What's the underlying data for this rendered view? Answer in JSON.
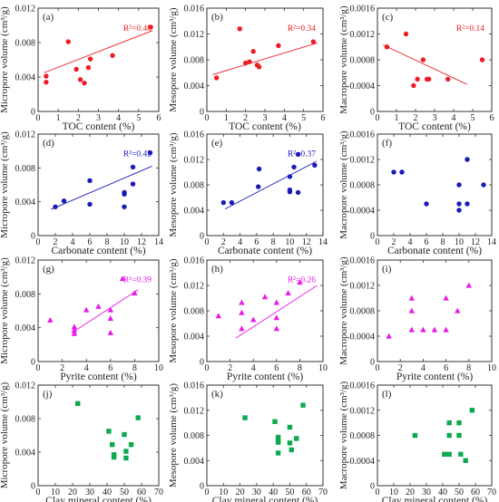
{
  "figure": {
    "background": "#ffffff"
  },
  "chart_data": [
    {
      "panel": "(a)",
      "type": "scatter",
      "color": "#ee1c24",
      "marker": "circle",
      "ylabel": "Micropore volume (cm³/g)",
      "xlabel": "TOC content (%)",
      "xlim": [
        0,
        6
      ],
      "ylim": [
        0,
        0.012
      ],
      "x_ticks": [
        "0",
        "1",
        "2",
        "3",
        "4",
        "5",
        "6"
      ],
      "y_ticks": [
        "0",
        "0.004",
        "0.008",
        "0.012"
      ],
      "x": [
        0.4,
        0.4,
        1.5,
        1.9,
        2.1,
        2.3,
        2.5,
        2.6,
        3.7,
        5.6
      ],
      "y": [
        0.0041,
        0.0034,
        0.0081,
        0.0049,
        0.0037,
        0.0033,
        0.0051,
        0.0061,
        0.0065,
        0.0098
      ],
      "trendline": {
        "x": [
          0.3,
          5.7
        ],
        "y": [
          0.0045,
          0.0094
        ]
      },
      "annotation": "R²=0.48"
    },
    {
      "panel": "(b)",
      "type": "scatter",
      "color": "#ee1c24",
      "marker": "circle",
      "ylabel": "Mesopore volume (cm³/g)",
      "xlabel": "TOC content (%)",
      "xlim": [
        0,
        6
      ],
      "ylim": [
        0,
        0.016
      ],
      "x_ticks": [
        "0",
        "1",
        "2",
        "3",
        "4",
        "5",
        "6"
      ],
      "y_ticks": [
        "0",
        "0.004",
        "0.008",
        "0.012",
        "0.016"
      ],
      "x": [
        0.5,
        1.7,
        2.0,
        2.2,
        2.4,
        2.6,
        2.7,
        3.7,
        5.5
      ],
      "y": [
        0.0052,
        0.0128,
        0.0075,
        0.0077,
        0.0093,
        0.0072,
        0.0069,
        0.0102,
        0.0108
      ],
      "trendline": {
        "x": [
          0.3,
          5.7
        ],
        "y": [
          0.0057,
          0.0106
        ]
      },
      "annotation": "R²=0.34"
    },
    {
      "panel": "(c)",
      "type": "scatter",
      "color": "#ee1c24",
      "marker": "circle",
      "ylabel": "Macropore volume (cm³/g)",
      "xlabel": "TOC content (%)",
      "xlim": [
        0,
        6
      ],
      "ylim": [
        0,
        0.0016
      ],
      "x_ticks": [
        "0",
        "1",
        "2",
        "3",
        "4",
        "5",
        "6"
      ],
      "y_ticks": [
        "0",
        "0.0004",
        "0.0008",
        "0.0012",
        "0.0016"
      ],
      "x": [
        0.5,
        1.5,
        1.9,
        2.1,
        2.4,
        2.6,
        2.7,
        3.7,
        5.5
      ],
      "y": [
        0.001,
        0.0012,
        0.0004,
        0.0005,
        0.0008,
        0.0005,
        0.0005,
        0.0005,
        0.0008
      ],
      "trendline": {
        "x": [
          0.3,
          4.7
        ],
        "y": [
          0.00103,
          0.00042
        ]
      },
      "annotation": "R²=0.14"
    },
    {
      "panel": "(d)",
      "type": "scatter",
      "color": "#1a1ab8",
      "marker": "circle",
      "ylabel": "Micropore volume (cm³/g)",
      "xlabel": "Carbonate content (%)",
      "xlim": [
        0,
        14
      ],
      "ylim": [
        0,
        0.012
      ],
      "x_ticks": [
        "0",
        "2",
        "4",
        "6",
        "8",
        "10",
        "12",
        "14"
      ],
      "y_ticks": [
        "0",
        "0.004",
        "0.008",
        "0.012"
      ],
      "x": [
        2,
        3,
        6,
        6,
        10,
        10,
        10,
        11,
        11,
        13
      ],
      "y": [
        0.0034,
        0.0041,
        0.0037,
        0.0065,
        0.0051,
        0.0049,
        0.0034,
        0.0061,
        0.0081,
        0.0098
      ],
      "trendline": {
        "x": [
          1.5,
          13.2
        ],
        "y": [
          0.0031,
          0.0082
        ]
      },
      "annotation": "R²=0.42"
    },
    {
      "panel": "(e)",
      "type": "scatter",
      "color": "#1a1ab8",
      "marker": "circle",
      "ylabel": "Mesopore volume (cm³/g)",
      "xlabel": "Carbonate content (%)",
      "xlim": [
        0,
        14
      ],
      "ylim": [
        0,
        0.016
      ],
      "x_ticks": [
        "0",
        "2",
        "4",
        "6",
        "8",
        "10",
        "12",
        "14"
      ],
      "y_ticks": [
        "0",
        "0.004",
        "0.008",
        "0.012",
        "0.016"
      ],
      "x": [
        2,
        3,
        6.2,
        6.3,
        10,
        10,
        10,
        10.5,
        11,
        11,
        13
      ],
      "y": [
        0.0052,
        0.0052,
        0.0077,
        0.0105,
        0.0093,
        0.0072,
        0.0069,
        0.0108,
        0.0068,
        0.0128,
        0.0111
      ],
      "trendline": {
        "x": [
          2.2,
          13.2
        ],
        "y": [
          0.0042,
          0.0117
        ]
      },
      "annotation": "R²=0.37"
    },
    {
      "panel": "(f)",
      "type": "scatter",
      "color": "#1a1ab8",
      "marker": "circle",
      "ylabel": "Macropore volume (cm³/g)",
      "xlabel": "Carbonate content (%)",
      "xlim": [
        0,
        14
      ],
      "ylim": [
        0,
        0.0016
      ],
      "x_ticks": [
        "0",
        "2",
        "4",
        "6",
        "8",
        "10",
        "12",
        "14"
      ],
      "y_ticks": [
        "0",
        "0.0004",
        "0.0008",
        "0.0012",
        "0.0016"
      ],
      "x": [
        2,
        3,
        6,
        10,
        10,
        10,
        11,
        11,
        13
      ],
      "y": [
        0.001,
        0.001,
        0.0005,
        0.0008,
        0.0005,
        0.0004,
        0.0012,
        0.0005,
        0.0008
      ]
    },
    {
      "panel": "(g)",
      "type": "scatter",
      "color": "#e81ae8",
      "marker": "triangle",
      "ylabel": "Micropore volume (cm³/g)",
      "xlabel": "Pyrite content (%)",
      "xlim": [
        0,
        10
      ],
      "ylim": [
        0,
        0.012
      ],
      "x_ticks": [
        "0",
        "2",
        "4",
        "6",
        "8",
        "10"
      ],
      "y_ticks": [
        "0",
        "0.004",
        "0.008",
        "0.012"
      ],
      "x": [
        1,
        3,
        3,
        3,
        4,
        5,
        6,
        6,
        6,
        7,
        8
      ],
      "y": [
        0.0049,
        0.0041,
        0.0037,
        0.0033,
        0.0061,
        0.0065,
        0.0051,
        0.0034,
        0.0061,
        0.0098,
        0.0081
      ],
      "trendline": {
        "x": [
          2.8,
          8.3
        ],
        "y": [
          0.0034,
          0.0085
        ]
      },
      "annotation": "R²=0.39"
    },
    {
      "panel": "(h)",
      "type": "scatter",
      "color": "#e81ae8",
      "marker": "triangle",
      "ylabel": "Mesopore volume (cm³/g)",
      "xlabel": "Pyrite content (%)",
      "xlim": [
        0,
        10
      ],
      "ylim": [
        0,
        0.016
      ],
      "x_ticks": [
        "0",
        "2",
        "4",
        "6",
        "8",
        "10"
      ],
      "y_ticks": [
        "0",
        "0.004",
        "0.008",
        "0.012",
        "0.016"
      ],
      "x": [
        1,
        3,
        3,
        3,
        4,
        5,
        6,
        6,
        6,
        7,
        8
      ],
      "y": [
        0.0072,
        0.0093,
        0.0077,
        0.0052,
        0.0066,
        0.0102,
        0.0069,
        0.0052,
        0.0093,
        0.0108,
        0.0125
      ],
      "trendline": {
        "x": [
          2.5,
          9.5
        ],
        "y": [
          0.0037,
          0.012
        ]
      },
      "annotation": "R²=0.26"
    },
    {
      "panel": "(i)",
      "type": "scatter",
      "color": "#e81ae8",
      "marker": "triangle",
      "ylabel": "Macropore volume (cm³/g)",
      "xlabel": "Pyrite content (%)",
      "xlim": [
        0,
        10
      ],
      "ylim": [
        0,
        0.0016
      ],
      "x_ticks": [
        "0",
        "2",
        "4",
        "6",
        "8",
        "10"
      ],
      "y_ticks": [
        "0",
        "0.0004",
        "0.0008",
        "0.0012",
        "0.0016"
      ],
      "x": [
        1,
        3,
        3,
        3,
        4,
        5,
        6,
        6,
        7,
        8
      ],
      "y": [
        0.0004,
        0.001,
        0.0008,
        0.0005,
        0.0005,
        0.0005,
        0.001,
        0.0005,
        0.0008,
        0.0012
      ]
    },
    {
      "panel": "(j)",
      "type": "scatter",
      "color": "#0fa850",
      "marker": "square",
      "ylabel": "Micropore volume (cm³/g)",
      "xlabel": "Clay mineral content (%)",
      "xlim": [
        0,
        70
      ],
      "ylim": [
        0,
        0.012
      ],
      "x_ticks": [
        "0",
        "10",
        "20",
        "30",
        "40",
        "50",
        "60",
        "70"
      ],
      "y_ticks": [
        "0",
        "0.004",
        "0.008",
        "0.012"
      ],
      "x": [
        23,
        41,
        43,
        44,
        44,
        50,
        51,
        51,
        54,
        58
      ],
      "y": [
        0.0098,
        0.0065,
        0.0049,
        0.0037,
        0.0034,
        0.0061,
        0.0041,
        0.0033,
        0.0049,
        0.0081
      ]
    },
    {
      "panel": "(k)",
      "type": "scatter",
      "color": "#0fa850",
      "marker": "square",
      "ylabel": "Mesopore volume (cm³/g)",
      "xlabel": "Clay mineral content (%)",
      "xlim": [
        0,
        70
      ],
      "ylim": [
        0,
        0.016
      ],
      "x_ticks": [
        "0",
        "10",
        "20",
        "30",
        "40",
        "50",
        "60",
        "70"
      ],
      "y_ticks": [
        "0",
        "0.004",
        "0.008",
        "0.012",
        "0.016"
      ],
      "x": [
        23,
        41,
        43,
        43,
        43,
        43,
        50,
        50,
        51,
        54,
        58
      ],
      "y": [
        0.0108,
        0.0102,
        0.0077,
        0.0072,
        0.0069,
        0.0052,
        0.0093,
        0.0068,
        0.0057,
        0.0075,
        0.0128
      ]
    },
    {
      "panel": "(l)",
      "type": "scatter",
      "color": "#0fa850",
      "marker": "square",
      "ylabel": "Macropore volume (cm³/g)",
      "xlabel": "Clay mineral content (%)",
      "xlim": [
        0,
        70
      ],
      "ylim": [
        0,
        0.0016
      ],
      "x_ticks": [
        "0",
        "10",
        "20",
        "30",
        "40",
        "50",
        "60",
        "70"
      ],
      "y_ticks": [
        "0",
        "0.0004",
        "0.0008",
        "0.0012",
        "0.0016"
      ],
      "x": [
        23,
        41,
        44,
        44,
        44,
        50,
        50,
        51,
        54,
        58
      ],
      "y": [
        0.0008,
        0.0005,
        0.001,
        0.0008,
        0.0005,
        0.001,
        0.0008,
        0.0005,
        0.0004,
        0.0012
      ]
    }
  ]
}
